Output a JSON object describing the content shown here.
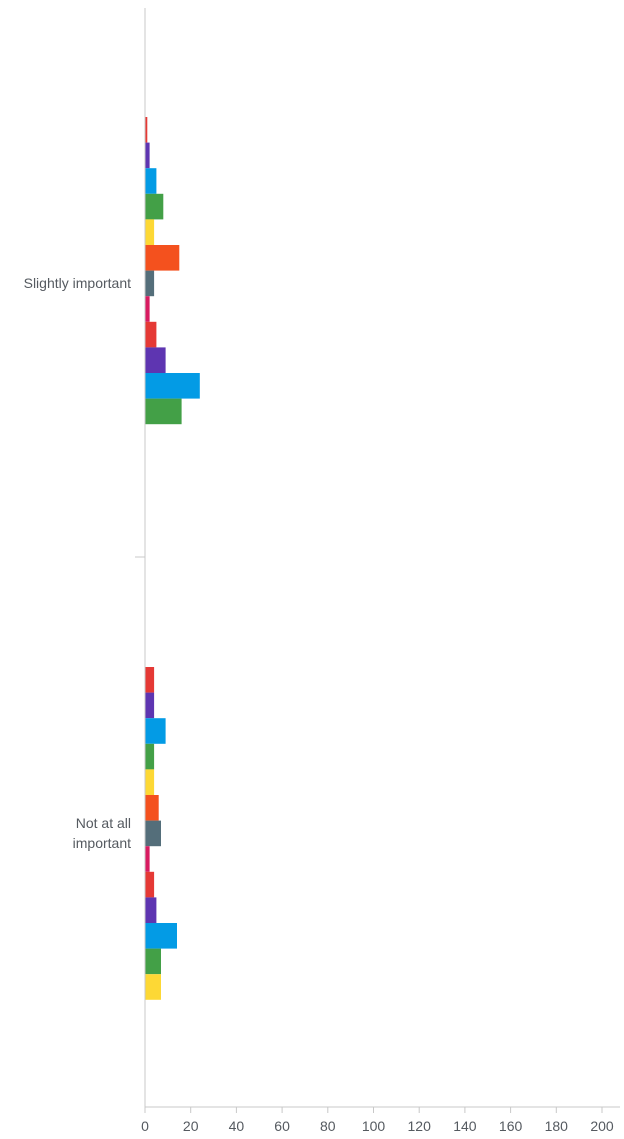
{
  "chart_data": {
    "type": "bar",
    "orientation": "horizontal",
    "categories": [
      "Slightly important",
      "Not at all\nimportant"
    ],
    "xlim": [
      0,
      210
    ],
    "x_ticks": [
      0,
      20,
      40,
      60,
      80,
      100,
      120,
      140,
      160,
      180,
      200
    ],
    "grid": false,
    "series": [
      {
        "color": "#e53935",
        "values": [
          1,
          4
        ]
      },
      {
        "color": "#5e35b1",
        "values": [
          2,
          4
        ]
      },
      {
        "color": "#039be5",
        "values": [
          5,
          9
        ]
      },
      {
        "color": "#43a047",
        "values": [
          8,
          4
        ]
      },
      {
        "color": "#fdd835",
        "values": [
          4,
          4
        ]
      },
      {
        "color": "#f4511e",
        "values": [
          15,
          6
        ]
      },
      {
        "color": "#546e7a",
        "values": [
          4,
          7
        ]
      },
      {
        "color": "#d81b60",
        "values": [
          2,
          2
        ]
      },
      {
        "color": "#e53935",
        "values": [
          5,
          4
        ]
      },
      {
        "color": "#5e35b1",
        "values": [
          9,
          5
        ]
      },
      {
        "color": "#039be5",
        "values": [
          24,
          14
        ]
      },
      {
        "color": "#43a047",
        "values": [
          16,
          7
        ]
      },
      {
        "color": "#fdd835",
        "values": [
          0,
          7
        ]
      }
    ]
  }
}
